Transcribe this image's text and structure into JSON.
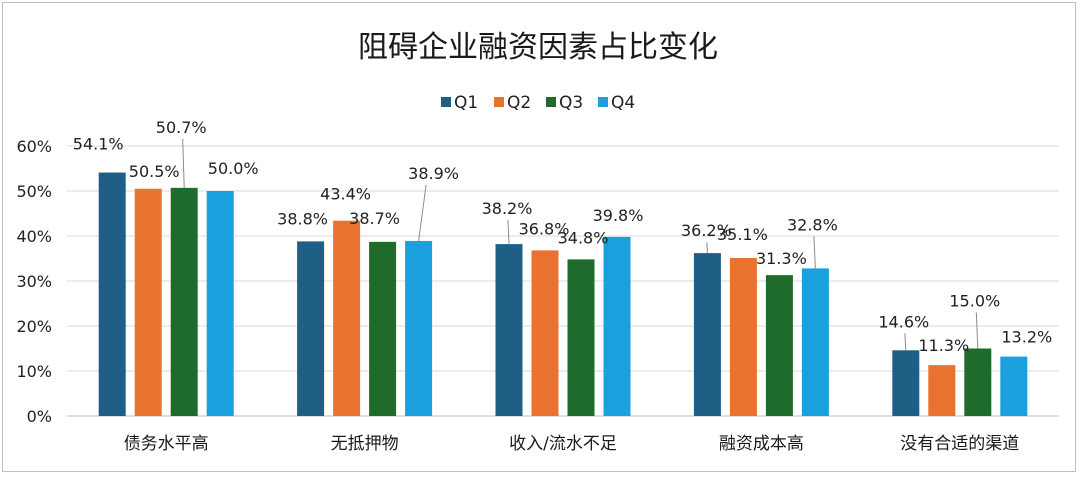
{
  "chart_data": {
    "type": "bar",
    "title": "阻碍企业融资因素占比变化",
    "xlabel": "",
    "ylabel": "",
    "ylim": [
      0,
      60
    ],
    "yticks": [
      "0%",
      "10%",
      "20%",
      "30%",
      "40%",
      "50%",
      "60%"
    ],
    "grid": true,
    "legend_position": "top",
    "categories": [
      "债务水平高",
      "无抵押物",
      "收入/流水不足",
      "融资成本高",
      "没有合适的渠道"
    ],
    "series": [
      {
        "name": "Q1",
        "color": "#1f5f86",
        "values": [
          54.1,
          38.8,
          38.2,
          36.2,
          14.6
        ],
        "labels": [
          "54.1%",
          "38.8%",
          "38.2%",
          "36.2%",
          "14.6%"
        ]
      },
      {
        "name": "Q2",
        "color": "#e8722f",
        "values": [
          50.5,
          43.4,
          36.8,
          35.1,
          11.3
        ],
        "labels": [
          "50.5%",
          "43.4%",
          "36.8%",
          "35.1%",
          "11.3%"
        ]
      },
      {
        "name": "Q3",
        "color": "#1e6b2b",
        "values": [
          50.7,
          38.7,
          34.8,
          31.3,
          15.0
        ],
        "labels": [
          "50.7%",
          "38.7%",
          "34.8%",
          "31.3%",
          "15.0%"
        ]
      },
      {
        "name": "Q4",
        "color": "#1aa0dc",
        "values": [
          50.0,
          38.9,
          39.8,
          32.8,
          13.2
        ],
        "labels": [
          "50.0%",
          "38.9%",
          "39.8%",
          "32.8%",
          "13.2%"
        ]
      }
    ]
  }
}
